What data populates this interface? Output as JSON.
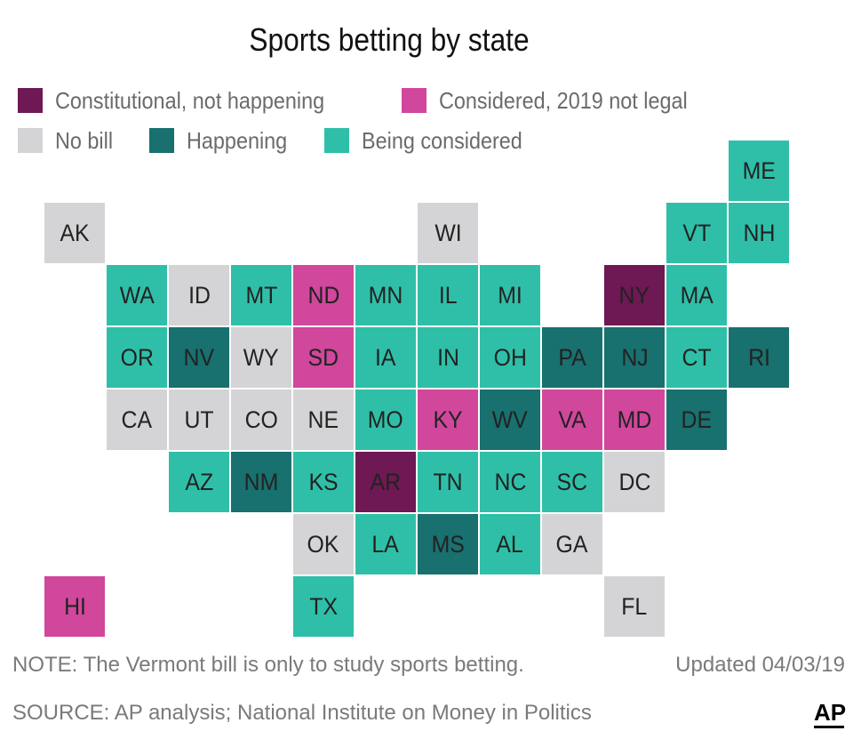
{
  "title": "Sports betting by state",
  "colors": {
    "constitutional": "#6e1854",
    "considered_not_legal": "#d0479c",
    "no_bill": "#d4d4d6",
    "happening": "#18706f",
    "being_considered": "#2fbfa8"
  },
  "legend": [
    {
      "key": "constitutional",
      "label": "Constitutional, not happening"
    },
    {
      "key": "considered_not_legal",
      "label": "Considered, 2019 not legal"
    },
    {
      "key": "no_bill",
      "label": "No bill"
    },
    {
      "key": "happening",
      "label": "Happening"
    },
    {
      "key": "being_considered",
      "label": "Being considered"
    }
  ],
  "states": [
    {
      "abbr": "ME",
      "row": 0,
      "col": 11,
      "status": "being_considered"
    },
    {
      "abbr": "AK",
      "row": 1,
      "col": 0,
      "status": "no_bill"
    },
    {
      "abbr": "WI",
      "row": 1,
      "col": 6,
      "status": "no_bill"
    },
    {
      "abbr": "VT",
      "row": 1,
      "col": 10,
      "status": "being_considered"
    },
    {
      "abbr": "NH",
      "row": 1,
      "col": 11,
      "status": "being_considered"
    },
    {
      "abbr": "WA",
      "row": 2,
      "col": 1,
      "status": "being_considered"
    },
    {
      "abbr": "ID",
      "row": 2,
      "col": 2,
      "status": "no_bill"
    },
    {
      "abbr": "MT",
      "row": 2,
      "col": 3,
      "status": "being_considered"
    },
    {
      "abbr": "ND",
      "row": 2,
      "col": 4,
      "status": "considered_not_legal"
    },
    {
      "abbr": "MN",
      "row": 2,
      "col": 5,
      "status": "being_considered"
    },
    {
      "abbr": "IL",
      "row": 2,
      "col": 6,
      "status": "being_considered"
    },
    {
      "abbr": "MI",
      "row": 2,
      "col": 7,
      "status": "being_considered"
    },
    {
      "abbr": "NY",
      "row": 2,
      "col": 9,
      "status": "constitutional"
    },
    {
      "abbr": "MA",
      "row": 2,
      "col": 10,
      "status": "being_considered"
    },
    {
      "abbr": "OR",
      "row": 3,
      "col": 1,
      "status": "being_considered"
    },
    {
      "abbr": "NV",
      "row": 3,
      "col": 2,
      "status": "happening"
    },
    {
      "abbr": "WY",
      "row": 3,
      "col": 3,
      "status": "no_bill"
    },
    {
      "abbr": "SD",
      "row": 3,
      "col": 4,
      "status": "considered_not_legal"
    },
    {
      "abbr": "IA",
      "row": 3,
      "col": 5,
      "status": "being_considered"
    },
    {
      "abbr": "IN",
      "row": 3,
      "col": 6,
      "status": "being_considered"
    },
    {
      "abbr": "OH",
      "row": 3,
      "col": 7,
      "status": "being_considered"
    },
    {
      "abbr": "PA",
      "row": 3,
      "col": 8,
      "status": "happening"
    },
    {
      "abbr": "NJ",
      "row": 3,
      "col": 9,
      "status": "happening"
    },
    {
      "abbr": "CT",
      "row": 3,
      "col": 10,
      "status": "being_considered"
    },
    {
      "abbr": "RI",
      "row": 3,
      "col": 11,
      "status": "happening"
    },
    {
      "abbr": "CA",
      "row": 4,
      "col": 1,
      "status": "no_bill"
    },
    {
      "abbr": "UT",
      "row": 4,
      "col": 2,
      "status": "no_bill"
    },
    {
      "abbr": "CO",
      "row": 4,
      "col": 3,
      "status": "no_bill"
    },
    {
      "abbr": "NE",
      "row": 4,
      "col": 4,
      "status": "no_bill"
    },
    {
      "abbr": "MO",
      "row": 4,
      "col": 5,
      "status": "being_considered"
    },
    {
      "abbr": "KY",
      "row": 4,
      "col": 6,
      "status": "considered_not_legal"
    },
    {
      "abbr": "WV",
      "row": 4,
      "col": 7,
      "status": "happening"
    },
    {
      "abbr": "VA",
      "row": 4,
      "col": 8,
      "status": "considered_not_legal"
    },
    {
      "abbr": "MD",
      "row": 4,
      "col": 9,
      "status": "considered_not_legal"
    },
    {
      "abbr": "DE",
      "row": 4,
      "col": 10,
      "status": "happening"
    },
    {
      "abbr": "AZ",
      "row": 5,
      "col": 2,
      "status": "being_considered"
    },
    {
      "abbr": "NM",
      "row": 5,
      "col": 3,
      "status": "happening"
    },
    {
      "abbr": "KS",
      "row": 5,
      "col": 4,
      "status": "being_considered"
    },
    {
      "abbr": "AR",
      "row": 5,
      "col": 5,
      "status": "constitutional"
    },
    {
      "abbr": "TN",
      "row": 5,
      "col": 6,
      "status": "being_considered"
    },
    {
      "abbr": "NC",
      "row": 5,
      "col": 7,
      "status": "being_considered"
    },
    {
      "abbr": "SC",
      "row": 5,
      "col": 8,
      "status": "being_considered"
    },
    {
      "abbr": "DC",
      "row": 5,
      "col": 9,
      "status": "no_bill"
    },
    {
      "abbr": "OK",
      "row": 6,
      "col": 4,
      "status": "no_bill"
    },
    {
      "abbr": "LA",
      "row": 6,
      "col": 5,
      "status": "being_considered"
    },
    {
      "abbr": "MS",
      "row": 6,
      "col": 6,
      "status": "happening"
    },
    {
      "abbr": "AL",
      "row": 6,
      "col": 7,
      "status": "being_considered"
    },
    {
      "abbr": "GA",
      "row": 6,
      "col": 8,
      "status": "no_bill"
    },
    {
      "abbr": "HI",
      "row": 7,
      "col": 0,
      "status": "considered_not_legal"
    },
    {
      "abbr": "TX",
      "row": 7,
      "col": 4,
      "status": "being_considered"
    },
    {
      "abbr": "FL",
      "row": 7,
      "col": 9,
      "status": "no_bill"
    }
  ],
  "note": "NOTE: The Vermont bill is only to study sports betting.",
  "updated": "Updated 04/03/19",
  "source": "SOURCE: AP analysis; National Institute on Money in Politics",
  "logo": "AP"
}
